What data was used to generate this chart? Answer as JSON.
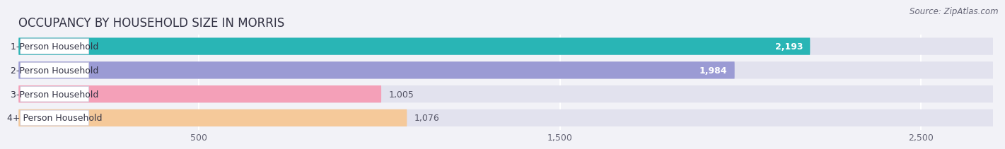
{
  "title": "OCCUPANCY BY HOUSEHOLD SIZE IN MORRIS",
  "source": "Source: ZipAtlas.com",
  "categories": [
    "1-Person Household",
    "2-Person Household",
    "3-Person Household",
    "4+ Person Household"
  ],
  "values": [
    2193,
    1984,
    1005,
    1076
  ],
  "bar_colors": [
    "#29b5b5",
    "#9b9bd4",
    "#f4a0b8",
    "#f5c99a"
  ],
  "label_colors": [
    "white",
    "white",
    "#555555",
    "#555555"
  ],
  "xlim": [
    0,
    2700
  ],
  "xticks": [
    500,
    1500,
    2500
  ],
  "xticklabels": [
    "500",
    "1,500",
    "2,500"
  ],
  "bar_height": 0.72,
  "background_color": "#f2f2f7",
  "bar_bg_color": "#e2e2ee",
  "title_fontsize": 12,
  "label_fontsize": 9,
  "value_fontsize": 9,
  "source_fontsize": 8.5
}
